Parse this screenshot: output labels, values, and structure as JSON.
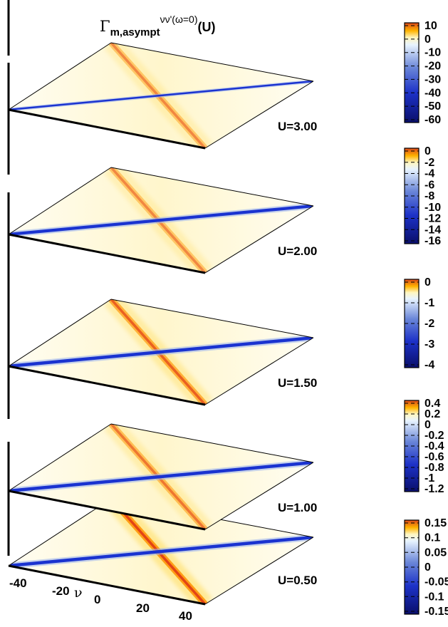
{
  "chart_data": {
    "type": "heatmap",
    "title": {
      "base": "Γ",
      "subscript": "m,asympt",
      "superscript": "νν'(ω=0)",
      "suffix": "(U)"
    },
    "xlabel": "ν",
    "x_ticks": [
      "-40",
      "-20",
      "0",
      "20",
      "40"
    ],
    "panels": [
      {
        "label": "U=3.00",
        "U": 3.0,
        "colorbar_ticks": [
          "10",
          "0",
          "-10",
          "-20",
          "-30",
          "-40",
          "-50",
          "-60"
        ],
        "range": [
          -60,
          10
        ],
        "diag_strength": 0.35,
        "anti_strength": 0.5
      },
      {
        "label": "U=2.00",
        "U": 2.0,
        "colorbar_ticks": [
          "0",
          "-2",
          "-4",
          "-6",
          "-8",
          "-10",
          "-12",
          "-14",
          "-16"
        ],
        "range": [
          -16,
          0
        ],
        "diag_strength": 0.9,
        "anti_strength": 0.5
      },
      {
        "label": "U=1.50",
        "U": 1.5,
        "colorbar_ticks": [
          "0",
          "-1",
          "-2",
          "-3",
          "-4"
        ],
        "range": [
          -4,
          0
        ],
        "diag_strength": 1.0,
        "anti_strength": 0.75
      },
      {
        "label": "U=1.00",
        "U": 1.0,
        "colorbar_ticks": [
          "0.4",
          "0.2",
          "0",
          "-0.2",
          "-0.4",
          "-0.6",
          "-0.8",
          "-1",
          "-1.2"
        ],
        "range": [
          -1.2,
          0.4
        ],
        "diag_strength": 1.0,
        "anti_strength": 0.6
      },
      {
        "label": "U=0.50",
        "U": 0.5,
        "colorbar_ticks": [
          "0.15",
          "0.1",
          "0.05",
          "0",
          "-0.05",
          "-0.1",
          "-0.15"
        ],
        "range": [
          -0.15,
          0.15
        ],
        "diag_strength": 1.0,
        "anti_strength": 1.0
      }
    ],
    "grid": false,
    "legend": "colorbars-right"
  }
}
